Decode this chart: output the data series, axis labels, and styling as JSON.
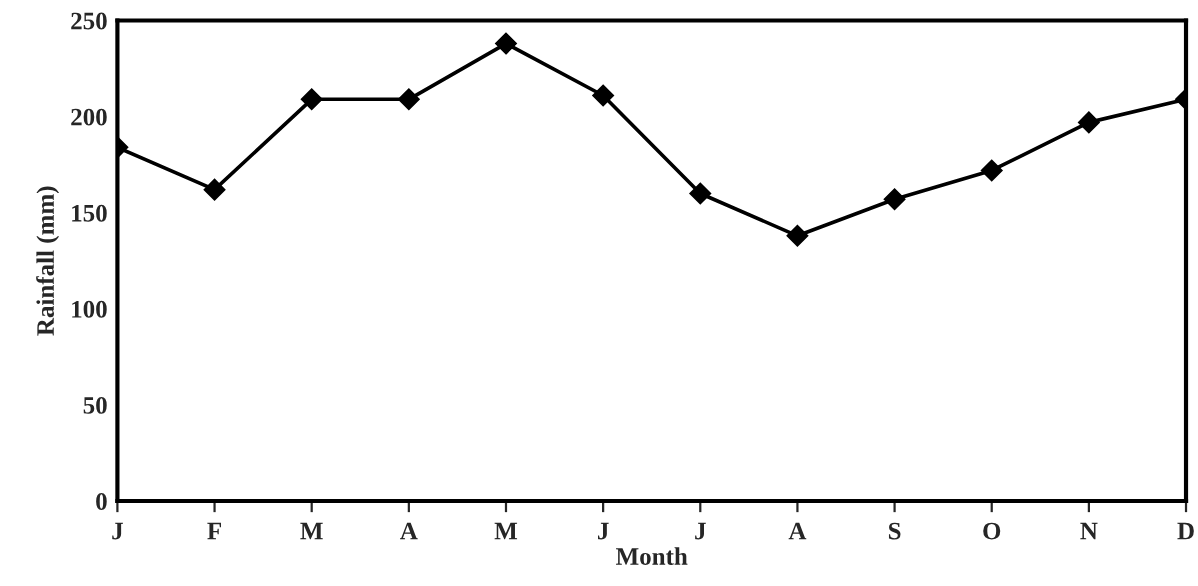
{
  "chart_data": {
    "type": "line",
    "xlabel": "Month",
    "ylabel": "Rainfall (mm)",
    "categories": [
      "J",
      "F",
      "M",
      "A",
      "M",
      "J",
      "J",
      "A",
      "S",
      "O",
      "N",
      "D"
    ],
    "series": [
      {
        "color": "#000000",
        "values": [
          184,
          162,
          209,
          209,
          238,
          211,
          160,
          138,
          157,
          172,
          197,
          209
        ]
      }
    ],
    "ylim": [
      0,
      250
    ],
    "yticks": [
      0,
      50,
      100,
      150,
      200,
      250
    ],
    "grid": false,
    "marker": "diamond",
    "line_style": "solid"
  }
}
